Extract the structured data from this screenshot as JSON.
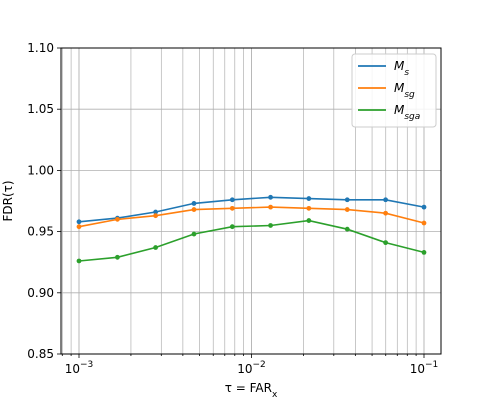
{
  "chart_data": {
    "type": "line",
    "x_scale": "log",
    "grid": true,
    "legend_position": "top-right",
    "xlim": [
      0.0008,
      0.00125
    ],
    "ylim": [
      0.85,
      1.1
    ],
    "xlabel": {
      "base": "τ = FAR",
      "sub": "x"
    },
    "ylabel": "FDR(τ)",
    "x_ticks": [
      {
        "value": 0.001,
        "base": "10",
        "exp": "−3"
      },
      {
        "value": 0.01,
        "base": "10",
        "exp": "−2"
      },
      {
        "value": 0.1,
        "base": "10",
        "exp": "−1"
      }
    ],
    "y_ticks": [
      "0.85",
      "0.90",
      "0.95",
      "1.00",
      "1.05",
      "1.10"
    ],
    "x": [
      0.001,
      0.00167,
      0.00278,
      0.00464,
      0.00774,
      0.0129,
      0.0215,
      0.0359,
      0.0599,
      0.1
    ],
    "series": [
      {
        "name": {
          "base": "M",
          "sub": "s"
        },
        "color": "#1f77b4",
        "values": [
          0.958,
          0.961,
          0.966,
          0.973,
          0.976,
          0.978,
          0.977,
          0.976,
          0.976,
          0.97
        ]
      },
      {
        "name": {
          "base": "M",
          "sub": "sg"
        },
        "color": "#ff7f0e",
        "values": [
          0.954,
          0.96,
          0.963,
          0.968,
          0.969,
          0.97,
          0.969,
          0.968,
          0.965,
          0.957
        ]
      },
      {
        "name": {
          "base": "M",
          "sub": "sga"
        },
        "color": "#2ca02c",
        "values": [
          0.926,
          0.929,
          0.937,
          0.948,
          0.954,
          0.955,
          0.959,
          0.952,
          0.941,
          0.933
        ]
      }
    ]
  }
}
